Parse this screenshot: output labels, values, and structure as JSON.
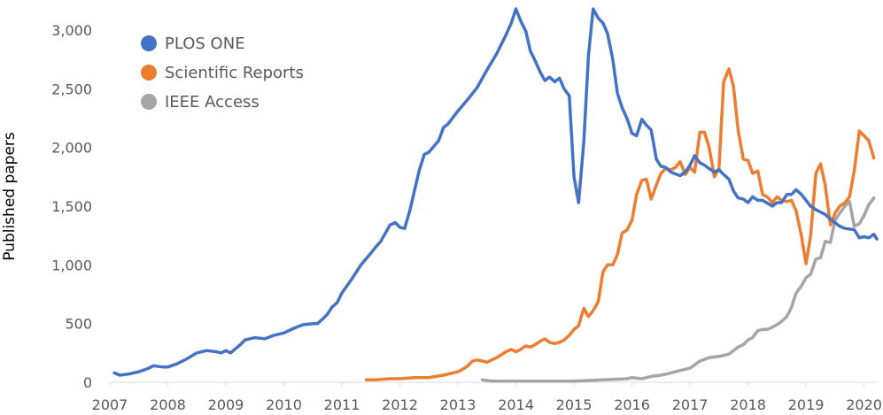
{
  "chart_data": {
    "type": "line",
    "title": "",
    "xlabel": "",
    "ylabel": "Published papers",
    "xlim": [
      2007.0,
      2020.22
    ],
    "ylim": [
      0,
      3200
    ],
    "x_ticks": [
      "2007",
      "2008",
      "2009",
      "2010",
      "2011",
      "2012",
      "2013",
      "2014",
      "2015",
      "2016",
      "2017",
      "2018",
      "2019",
      "2020"
    ],
    "y_ticks": [
      {
        "value": 0,
        "label": "0"
      },
      {
        "value": 500,
        "label": "500"
      },
      {
        "value": 1000,
        "label": "1,000"
      },
      {
        "value": 1500,
        "label": "1,500"
      },
      {
        "value": 2000,
        "label": "2,000"
      },
      {
        "value": 2500,
        "label": "2,500"
      },
      {
        "value": 3000,
        "label": "3,000"
      }
    ],
    "grid": false,
    "legend_position": "top-left",
    "series": [
      {
        "name": "PLOS ONE",
        "color": "#4472C4",
        "points": [
          [
            2007.08,
            80
          ],
          [
            2007.17,
            60
          ],
          [
            2007.33,
            70
          ],
          [
            2007.5,
            90
          ],
          [
            2007.67,
            120
          ],
          [
            2007.75,
            140
          ],
          [
            2007.92,
            130
          ],
          [
            2008.0,
            130
          ],
          [
            2008.17,
            160
          ],
          [
            2008.33,
            200
          ],
          [
            2008.5,
            250
          ],
          [
            2008.67,
            270
          ],
          [
            2008.83,
            260
          ],
          [
            2008.92,
            250
          ],
          [
            2009.0,
            270
          ],
          [
            2009.08,
            250
          ],
          [
            2009.25,
            320
          ],
          [
            2009.33,
            360
          ],
          [
            2009.5,
            380
          ],
          [
            2009.67,
            370
          ],
          [
            2009.83,
            400
          ],
          [
            2010.0,
            420
          ],
          [
            2010.17,
            460
          ],
          [
            2010.33,
            490
          ],
          [
            2010.5,
            500
          ],
          [
            2010.58,
            500
          ],
          [
            2010.67,
            540
          ],
          [
            2010.75,
            580
          ],
          [
            2010.83,
            640
          ],
          [
            2010.92,
            680
          ],
          [
            2011.0,
            760
          ],
          [
            2011.17,
            880
          ],
          [
            2011.33,
            1000
          ],
          [
            2011.5,
            1100
          ],
          [
            2011.58,
            1150
          ],
          [
            2011.67,
            1200
          ],
          [
            2011.83,
            1340
          ],
          [
            2011.92,
            1360
          ],
          [
            2012.0,
            1320
          ],
          [
            2012.08,
            1310
          ],
          [
            2012.17,
            1460
          ],
          [
            2012.33,
            1800
          ],
          [
            2012.42,
            1940
          ],
          [
            2012.5,
            1960
          ],
          [
            2012.67,
            2060
          ],
          [
            2012.75,
            2170
          ],
          [
            2012.83,
            2200
          ],
          [
            2012.92,
            2260
          ],
          [
            2013.0,
            2310
          ],
          [
            2013.17,
            2410
          ],
          [
            2013.33,
            2510
          ],
          [
            2013.5,
            2660
          ],
          [
            2013.67,
            2800
          ],
          [
            2013.83,
            2960
          ],
          [
            2013.92,
            3060
          ],
          [
            2014.0,
            3180
          ],
          [
            2014.08,
            3080
          ],
          [
            2014.17,
            2990
          ],
          [
            2014.25,
            2820
          ],
          [
            2014.33,
            2740
          ],
          [
            2014.42,
            2640
          ],
          [
            2014.5,
            2570
          ],
          [
            2014.58,
            2600
          ],
          [
            2014.67,
            2560
          ],
          [
            2014.75,
            2590
          ],
          [
            2014.83,
            2500
          ],
          [
            2014.92,
            2440
          ],
          [
            2015.0,
            1750
          ],
          [
            2015.08,
            1530
          ],
          [
            2015.17,
            2050
          ],
          [
            2015.25,
            2780
          ],
          [
            2015.33,
            3180
          ],
          [
            2015.42,
            3100
          ],
          [
            2015.5,
            3060
          ],
          [
            2015.58,
            2970
          ],
          [
            2015.67,
            2750
          ],
          [
            2015.75,
            2460
          ],
          [
            2015.83,
            2340
          ],
          [
            2015.92,
            2240
          ],
          [
            2016.0,
            2120
          ],
          [
            2016.08,
            2100
          ],
          [
            2016.17,
            2240
          ],
          [
            2016.25,
            2190
          ],
          [
            2016.33,
            2150
          ],
          [
            2016.42,
            1900
          ],
          [
            2016.5,
            1840
          ],
          [
            2016.58,
            1830
          ],
          [
            2016.67,
            1790
          ],
          [
            2016.83,
            1760
          ],
          [
            2016.92,
            1790
          ],
          [
            2017.0,
            1850
          ],
          [
            2017.08,
            1930
          ],
          [
            2017.17,
            1870
          ],
          [
            2017.25,
            1850
          ],
          [
            2017.33,
            1820
          ],
          [
            2017.42,
            1790
          ],
          [
            2017.5,
            1810
          ],
          [
            2017.58,
            1770
          ],
          [
            2017.67,
            1730
          ],
          [
            2017.75,
            1630
          ],
          [
            2017.83,
            1570
          ],
          [
            2017.92,
            1560
          ],
          [
            2018.0,
            1530
          ],
          [
            2018.08,
            1580
          ],
          [
            2018.17,
            1550
          ],
          [
            2018.25,
            1550
          ],
          [
            2018.42,
            1500
          ],
          [
            2018.5,
            1530
          ],
          [
            2018.58,
            1530
          ],
          [
            2018.67,
            1600
          ],
          [
            2018.75,
            1600
          ],
          [
            2018.83,
            1640
          ],
          [
            2018.92,
            1600
          ],
          [
            2019.0,
            1550
          ],
          [
            2019.08,
            1500
          ],
          [
            2019.17,
            1470
          ],
          [
            2019.33,
            1430
          ],
          [
            2019.42,
            1390
          ],
          [
            2019.5,
            1360
          ],
          [
            2019.58,
            1330
          ],
          [
            2019.67,
            1310
          ],
          [
            2019.83,
            1300
          ],
          [
            2019.92,
            1230
          ],
          [
            2020.0,
            1240
          ],
          [
            2020.08,
            1230
          ],
          [
            2020.17,
            1260
          ],
          [
            2020.22,
            1220
          ]
        ]
      },
      {
        "name": "Scientific Reports",
        "color": "#ED7D31",
        "points": [
          [
            2011.42,
            20
          ],
          [
            2011.58,
            20
          ],
          [
            2011.83,
            30
          ],
          [
            2012.0,
            30
          ],
          [
            2012.25,
            40
          ],
          [
            2012.5,
            40
          ],
          [
            2012.75,
            60
          ],
          [
            2012.92,
            80
          ],
          [
            2013.0,
            90
          ],
          [
            2013.08,
            110
          ],
          [
            2013.17,
            140
          ],
          [
            2013.25,
            180
          ],
          [
            2013.33,
            190
          ],
          [
            2013.42,
            180
          ],
          [
            2013.5,
            170
          ],
          [
            2013.67,
            210
          ],
          [
            2013.83,
            260
          ],
          [
            2013.92,
            280
          ],
          [
            2014.0,
            260
          ],
          [
            2014.08,
            280
          ],
          [
            2014.17,
            310
          ],
          [
            2014.25,
            300
          ],
          [
            2014.33,
            320
          ],
          [
            2014.42,
            350
          ],
          [
            2014.5,
            370
          ],
          [
            2014.58,
            340
          ],
          [
            2014.67,
            330
          ],
          [
            2014.75,
            340
          ],
          [
            2014.83,
            360
          ],
          [
            2014.92,
            400
          ],
          [
            2015.0,
            450
          ],
          [
            2015.08,
            480
          ],
          [
            2015.17,
            630
          ],
          [
            2015.25,
            560
          ],
          [
            2015.33,
            610
          ],
          [
            2015.42,
            690
          ],
          [
            2015.5,
            940
          ],
          [
            2015.58,
            1000
          ],
          [
            2015.67,
            1000
          ],
          [
            2015.75,
            1090
          ],
          [
            2015.83,
            1270
          ],
          [
            2015.92,
            1300
          ],
          [
            2016.0,
            1380
          ],
          [
            2016.08,
            1600
          ],
          [
            2016.17,
            1720
          ],
          [
            2016.25,
            1730
          ],
          [
            2016.33,
            1560
          ],
          [
            2016.42,
            1680
          ],
          [
            2016.5,
            1780
          ],
          [
            2016.58,
            1820
          ],
          [
            2016.67,
            1810
          ],
          [
            2016.75,
            1830
          ],
          [
            2016.83,
            1880
          ],
          [
            2016.92,
            1770
          ],
          [
            2017.0,
            1830
          ],
          [
            2017.08,
            1790
          ],
          [
            2017.17,
            2130
          ],
          [
            2017.25,
            2130
          ],
          [
            2017.33,
            2000
          ],
          [
            2017.42,
            1750
          ],
          [
            2017.5,
            1820
          ],
          [
            2017.58,
            2560
          ],
          [
            2017.67,
            2670
          ],
          [
            2017.75,
            2520
          ],
          [
            2017.83,
            2150
          ],
          [
            2017.92,
            1900
          ],
          [
            2018.0,
            1890
          ],
          [
            2018.08,
            1780
          ],
          [
            2018.17,
            1800
          ],
          [
            2018.25,
            1600
          ],
          [
            2018.33,
            1580
          ],
          [
            2018.42,
            1530
          ],
          [
            2018.5,
            1580
          ],
          [
            2018.58,
            1550
          ],
          [
            2018.67,
            1540
          ],
          [
            2018.75,
            1550
          ],
          [
            2018.83,
            1460
          ],
          [
            2018.92,
            1250
          ],
          [
            2019.0,
            1010
          ],
          [
            2019.08,
            1250
          ],
          [
            2019.17,
            1780
          ],
          [
            2019.25,
            1860
          ],
          [
            2019.33,
            1680
          ],
          [
            2019.42,
            1340
          ],
          [
            2019.5,
            1440
          ],
          [
            2019.58,
            1500
          ],
          [
            2019.67,
            1530
          ],
          [
            2019.75,
            1580
          ],
          [
            2019.83,
            1800
          ],
          [
            2019.92,
            2140
          ],
          [
            2020.0,
            2100
          ],
          [
            2020.08,
            2060
          ],
          [
            2020.17,
            1910
          ]
        ]
      },
      {
        "name": "IEEE Access",
        "color": "#A5A5A5",
        "points": [
          [
            2013.42,
            20
          ],
          [
            2013.58,
            10
          ],
          [
            2014.0,
            10
          ],
          [
            2014.5,
            10
          ],
          [
            2015.0,
            10
          ],
          [
            2015.5,
            20
          ],
          [
            2015.92,
            30
          ],
          [
            2016.0,
            40
          ],
          [
            2016.17,
            30
          ],
          [
            2016.33,
            50
          ],
          [
            2016.5,
            60
          ],
          [
            2016.67,
            80
          ],
          [
            2016.83,
            100
          ],
          [
            2017.0,
            120
          ],
          [
            2017.17,
            180
          ],
          [
            2017.33,
            210
          ],
          [
            2017.5,
            220
          ],
          [
            2017.67,
            240
          ],
          [
            2017.75,
            270
          ],
          [
            2017.83,
            300
          ],
          [
            2017.92,
            320
          ],
          [
            2018.0,
            360
          ],
          [
            2018.08,
            380
          ],
          [
            2018.17,
            440
          ],
          [
            2018.25,
            450
          ],
          [
            2018.33,
            450
          ],
          [
            2018.42,
            470
          ],
          [
            2018.5,
            490
          ],
          [
            2018.58,
            520
          ],
          [
            2018.67,
            560
          ],
          [
            2018.75,
            640
          ],
          [
            2018.83,
            760
          ],
          [
            2018.92,
            820
          ],
          [
            2019.0,
            890
          ],
          [
            2019.08,
            920
          ],
          [
            2019.17,
            1050
          ],
          [
            2019.25,
            1060
          ],
          [
            2019.33,
            1200
          ],
          [
            2019.42,
            1190
          ],
          [
            2019.5,
            1380
          ],
          [
            2019.58,
            1440
          ],
          [
            2019.67,
            1500
          ],
          [
            2019.75,
            1540
          ],
          [
            2019.83,
            1330
          ],
          [
            2019.92,
            1350
          ],
          [
            2020.0,
            1420
          ],
          [
            2020.08,
            1510
          ],
          [
            2020.17,
            1570
          ]
        ]
      }
    ]
  }
}
